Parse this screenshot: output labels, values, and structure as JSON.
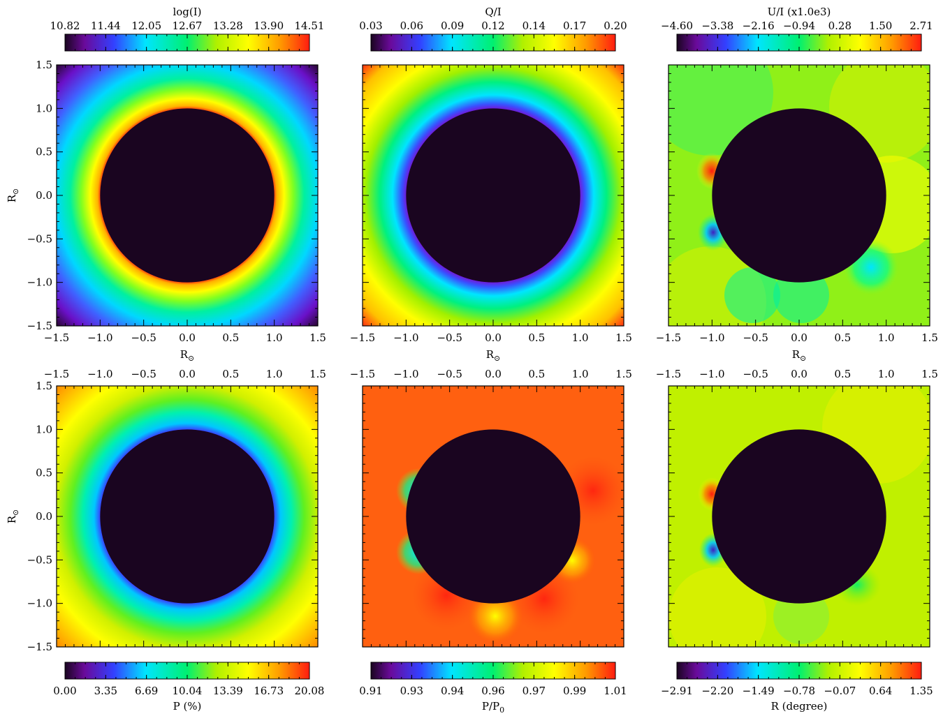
{
  "axis_label": "R",
  "axis_subscript": "⊙",
  "chart_data": [
    {
      "type": "heatmap",
      "colorbar_label": "log(I)",
      "colorbar_ticks": [
        "10.82",
        "11.44",
        "12.05",
        "12.67",
        "13.28",
        "13.90",
        "14.51"
      ],
      "colorbar_range": [
        10.82,
        14.51
      ],
      "xlim": [
        -1.5,
        1.5
      ],
      "ylim": [
        -1.5,
        1.5
      ],
      "disk_radius": 1.0,
      "x_ticks": [
        "−1.5",
        "−1.0",
        "−0.5",
        "0.0",
        "0.5",
        "1.0",
        "1.5"
      ],
      "y_ticks": [
        "1.5",
        "1.0",
        "0.5",
        "0.0",
        "−0.5",
        "−1.0",
        "−1.5"
      ]
    },
    {
      "type": "heatmap",
      "colorbar_label": "Q/I",
      "colorbar_ticks": [
        "0.03",
        "0.06",
        "0.09",
        "0.12",
        "0.14",
        "0.17",
        "0.20"
      ],
      "colorbar_range": [
        0.03,
        0.2
      ],
      "xlim": [
        -1.5,
        1.5
      ],
      "ylim": [
        -1.5,
        1.5
      ],
      "disk_radius": 1.0,
      "x_ticks": [
        "−1.5",
        "−1.0",
        "−0.5",
        "0.0",
        "0.5",
        "1.0",
        "1.5"
      ]
    },
    {
      "type": "heatmap",
      "colorbar_label": "U/I (x1.0e3)",
      "colorbar_ticks": [
        "−4.60",
        "−3.38",
        "−2.16",
        "−0.94",
        "0.28",
        "1.50",
        "2.71"
      ],
      "colorbar_range": [
        -4.6,
        2.71
      ],
      "xlim": [
        -1.5,
        1.5
      ],
      "ylim": [
        -1.5,
        1.5
      ],
      "disk_radius": 1.0,
      "x_ticks": [
        "−1.5",
        "−1.0",
        "−0.5",
        "0.0",
        "0.5",
        "1.0",
        "1.5"
      ]
    },
    {
      "type": "heatmap",
      "colorbar_label": "P (%)",
      "colorbar_ticks": [
        "0.00",
        "3.35",
        "6.69",
        "10.04",
        "13.39",
        "16.73",
        "20.08"
      ],
      "colorbar_range": [
        0.0,
        20.08
      ],
      "xlim": [
        -1.5,
        1.5
      ],
      "ylim": [
        -1.5,
        1.5
      ],
      "disk_radius": 1.0,
      "x_ticks": [
        "−1.5",
        "−1.0",
        "−0.5",
        "0.0",
        "0.5",
        "1.0",
        "1.5"
      ],
      "y_ticks": [
        "1.5",
        "1.0",
        "0.5",
        "0.0",
        "−0.5",
        "−1.0",
        "−1.5"
      ]
    },
    {
      "type": "heatmap",
      "colorbar_label": "P/P",
      "colorbar_label_subscript": "0",
      "colorbar_ticks": [
        "0.91",
        "0.93",
        "0.94",
        "0.96",
        "0.97",
        "0.99",
        "1.01"
      ],
      "colorbar_range": [
        0.91,
        1.01
      ],
      "xlim": [
        -1.5,
        1.5
      ],
      "ylim": [
        -1.5,
        1.5
      ],
      "disk_radius": 1.0,
      "x_ticks": [
        "−1.5",
        "−1.0",
        "−0.5",
        "0.0",
        "0.5",
        "1.0",
        "1.5"
      ]
    },
    {
      "type": "heatmap",
      "colorbar_label": "R (degree)",
      "colorbar_ticks": [
        "−2.91",
        "−2.20",
        "−1.49",
        "−0.78",
        "−0.07",
        "0.64",
        "1.35"
      ],
      "colorbar_range": [
        -2.91,
        1.35
      ],
      "xlim": [
        -1.5,
        1.5
      ],
      "ylim": [
        -1.5,
        1.5
      ],
      "disk_radius": 1.0,
      "x_ticks": [
        "−1.5",
        "−1.0",
        "−0.5",
        "0.0",
        "0.5",
        "1.0",
        "1.5"
      ]
    }
  ]
}
